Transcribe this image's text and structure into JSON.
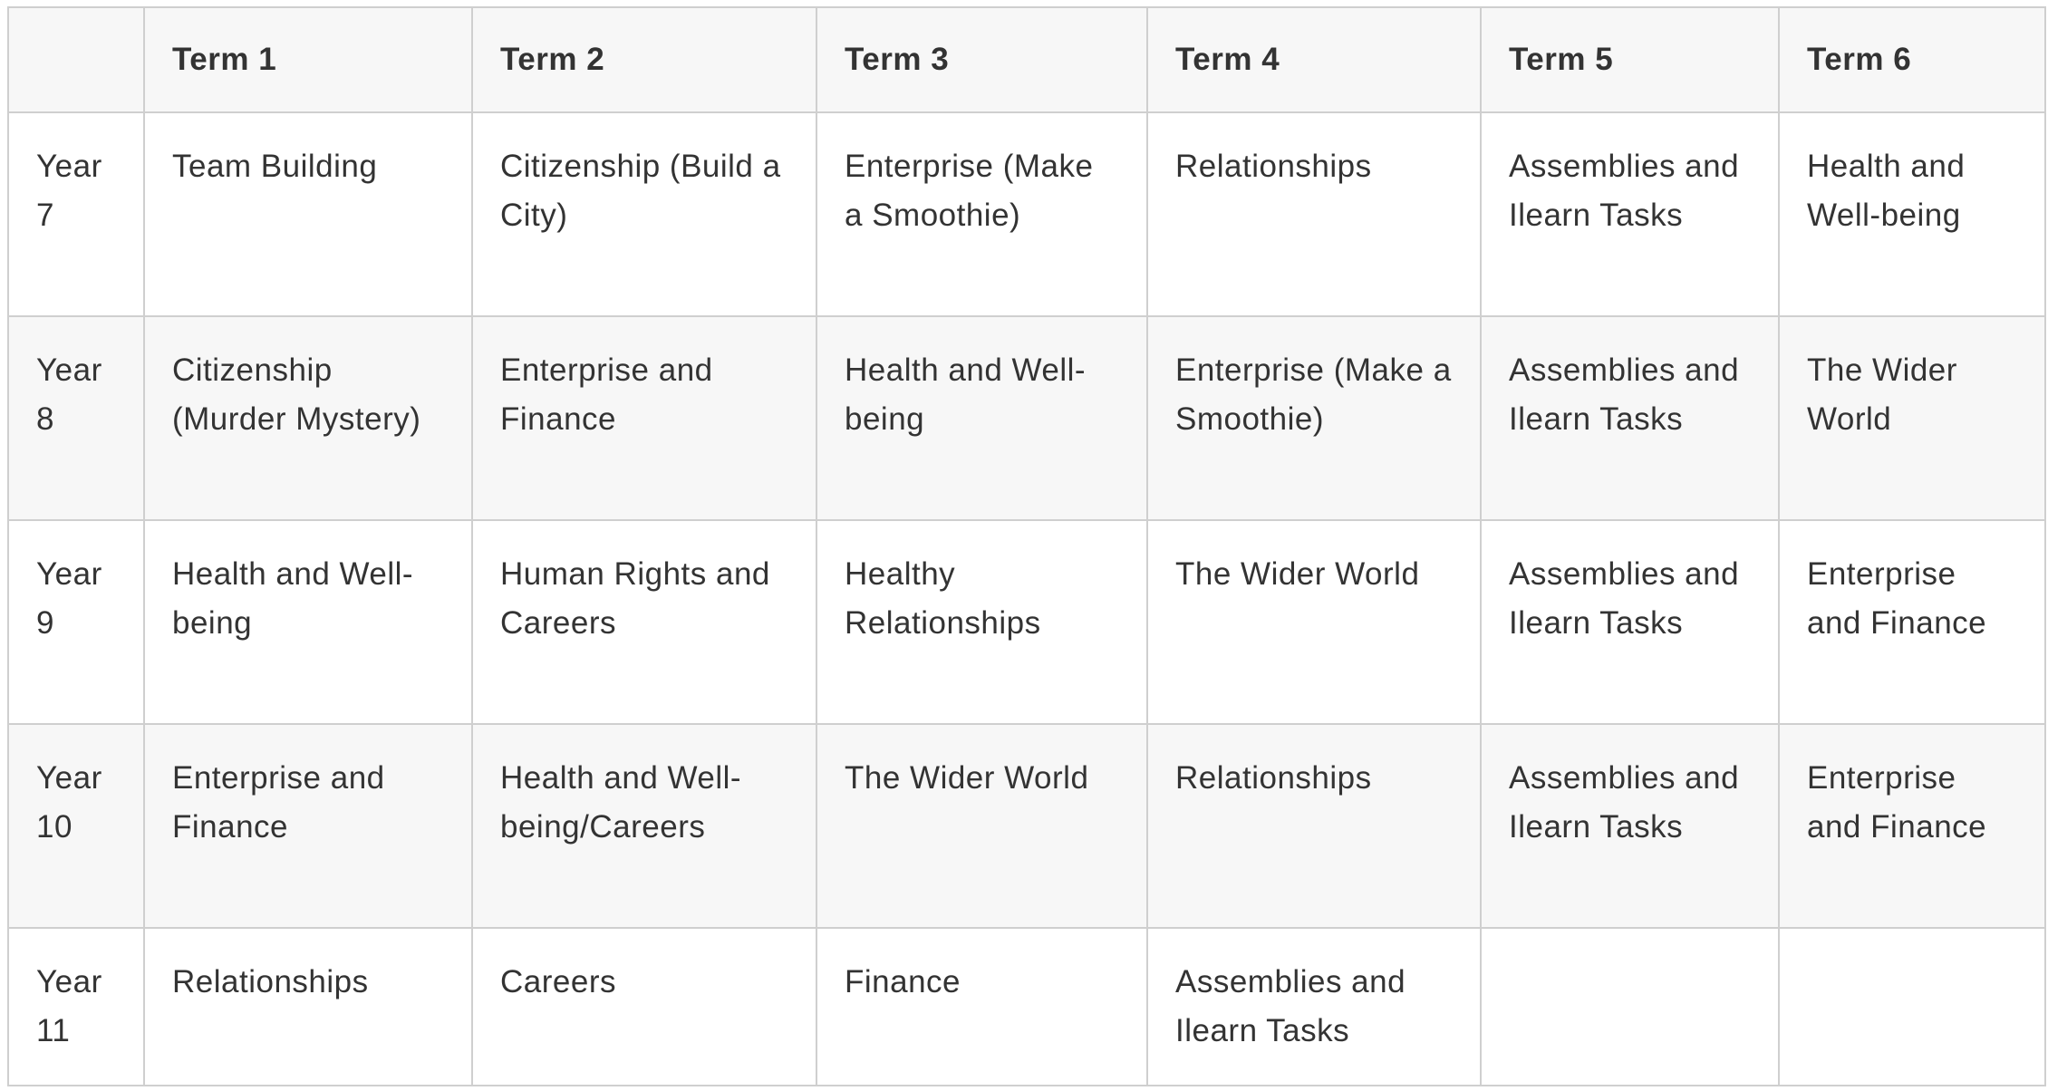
{
  "table": {
    "headers": [
      "",
      "Term 1",
      "Term 2",
      "Term 3",
      "Term 4",
      "Term 5",
      "Term 6"
    ],
    "rows": [
      [
        "Year 7",
        "Team Building",
        "Citizenship (Build a City)",
        "Enterprise (Make a Smoothie)",
        "Relationships",
        "Assemblies and Ilearn Tasks",
        "Health and Well-being"
      ],
      [
        "Year 8",
        "Citizenship (Murder Mystery)",
        "Enterprise and Finance",
        "Health and Well-being",
        "Enterprise (Make a Smoothie)",
        "Assemblies and Ilearn Tasks",
        "The Wider World"
      ],
      [
        "Year 9",
        "Health and Well-being",
        "Human Rights and Careers",
        "Healthy Relationships",
        "The Wider World",
        "Assemblies and Ilearn Tasks",
        "Enterprise and Finance"
      ],
      [
        "Year 10",
        "Enterprise and Finance",
        "Health and Well-being/Careers",
        "The Wider World",
        "Relationships",
        "Assemblies and Ilearn Tasks",
        "Enterprise and Finance"
      ],
      [
        "Year 11",
        "Relationships",
        "Careers",
        "Finance",
        "Assemblies and Ilearn Tasks",
        "",
        ""
      ]
    ]
  },
  "colors": {
    "header_bg": "#f7f7f7",
    "stripe_bg": "#f7f7f7",
    "border": "#cfcfcf",
    "text": "#333333"
  }
}
